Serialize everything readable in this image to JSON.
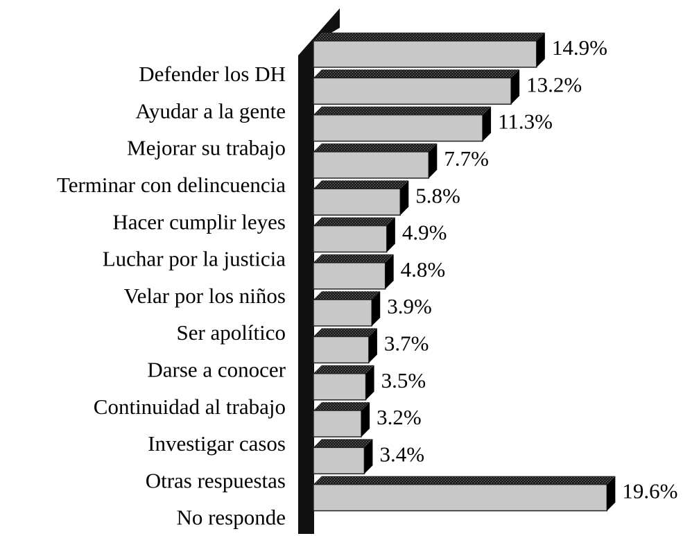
{
  "chart_data": {
    "type": "bar",
    "orientation": "horizontal",
    "categories": [
      "Defender los DH",
      "Ayudar a la gente",
      "Mejorar su trabajo",
      "Terminar con delincuencia",
      "Hacer cumplir leyes",
      "Luchar por la justicia",
      "Velar por los niños",
      "Ser apolítico",
      "Darse a conocer",
      "Continuidad al trabajo",
      "Investigar casos",
      "Otras respuestas",
      "No responde"
    ],
    "values": [
      14.9,
      13.2,
      11.3,
      7.7,
      5.8,
      4.9,
      4.8,
      3.9,
      3.7,
      3.5,
      3.2,
      3.4,
      19.6
    ],
    "value_labels": [
      "14.9%",
      "13.2%",
      "11.3%",
      "7.7%",
      "5.8%",
      "4.9%",
      "4.8%",
      "3.9%",
      "3.7%",
      "3.5%",
      "3.2%",
      "3.4%",
      "19.6%"
    ],
    "color": "#c8c8c8"
  }
}
